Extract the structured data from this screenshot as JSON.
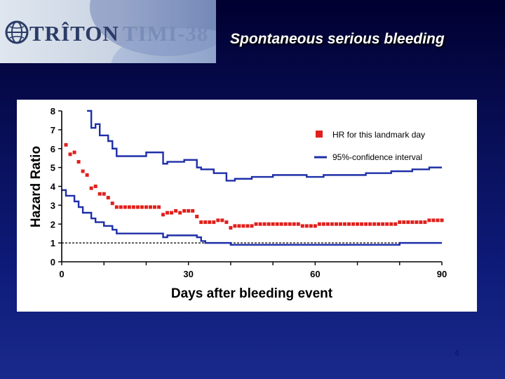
{
  "header": {
    "logo_text_triton": "TRÎTON",
    "logo_text_timi": "TIMI-38",
    "title": "Spontaneous serious bleeding"
  },
  "page_number": "4",
  "chart_data": {
    "type": "line",
    "xlabel": "Days after bleeding event",
    "ylabel": "Hazard Ratio",
    "xlim": [
      0,
      90
    ],
    "ylim": [
      0,
      8
    ],
    "x_ticks": [
      0,
      30,
      60,
      90
    ],
    "y_ticks": [
      0,
      1,
      2,
      3,
      4,
      5,
      6,
      7,
      8
    ],
    "reference_line": 1,
    "legend_position": "top-right",
    "colors": {
      "hr": "#e0201c",
      "ci": "#1e2fa8",
      "axis": "#000000"
    },
    "series": [
      {
        "name": "HR for this landmark day",
        "style": "markers",
        "x": [
          1,
          2,
          3,
          4,
          5,
          6,
          7,
          8,
          9,
          10,
          11,
          12,
          13,
          14,
          15,
          16,
          17,
          18,
          19,
          20,
          21,
          22,
          23,
          24,
          25,
          26,
          27,
          28,
          29,
          30,
          31,
          32,
          33,
          34,
          35,
          36,
          37,
          38,
          39,
          40,
          41,
          42,
          43,
          44,
          45,
          46,
          47,
          48,
          49,
          50,
          51,
          52,
          53,
          54,
          55,
          56,
          57,
          58,
          59,
          60,
          61,
          62,
          63,
          64,
          65,
          66,
          67,
          68,
          69,
          70,
          71,
          72,
          73,
          74,
          75,
          76,
          77,
          78,
          79,
          80,
          81,
          82,
          83,
          84,
          85,
          86,
          87,
          88,
          89,
          90
        ],
        "values": [
          6.2,
          5.7,
          5.8,
          5.3,
          4.8,
          4.6,
          3.9,
          4.0,
          3.6,
          3.6,
          3.4,
          3.1,
          2.9,
          2.9,
          2.9,
          2.9,
          2.9,
          2.9,
          2.9,
          2.9,
          2.9,
          2.9,
          2.9,
          2.5,
          2.6,
          2.6,
          2.7,
          2.6,
          2.7,
          2.7,
          2.7,
          2.4,
          2.1,
          2.1,
          2.1,
          2.1,
          2.2,
          2.2,
          2.1,
          1.8,
          1.9,
          1.9,
          1.9,
          1.9,
          1.9,
          2.0,
          2.0,
          2.0,
          2.0,
          2.0,
          2.0,
          2.0,
          2.0,
          2.0,
          2.0,
          2.0,
          1.9,
          1.9,
          1.9,
          1.9,
          2.0,
          2.0,
          2.0,
          2.0,
          2.0,
          2.0,
          2.0,
          2.0,
          2.0,
          2.0,
          2.0,
          2.0,
          2.0,
          2.0,
          2.0,
          2.0,
          2.0,
          2.0,
          2.0,
          2.1,
          2.1,
          2.1,
          2.1,
          2.1,
          2.1,
          2.1,
          2.2,
          2.2,
          2.2,
          2.2
        ]
      },
      {
        "name": "95%-confidence interval",
        "style": "step-line",
        "x": [
          6,
          7,
          8,
          9,
          10,
          11,
          12,
          13,
          14,
          15,
          16,
          17,
          18,
          19,
          20,
          21,
          22,
          23,
          24,
          25,
          26,
          27,
          28,
          29,
          30,
          31,
          32,
          33,
          34,
          35,
          36,
          37,
          38,
          39,
          40,
          41,
          42,
          43,
          44,
          45,
          46,
          47,
          48,
          49,
          50,
          51,
          52,
          53,
          54,
          55,
          56,
          57,
          58,
          59,
          60,
          61,
          62,
          63,
          64,
          65,
          66,
          67,
          68,
          69,
          70,
          71,
          72,
          73,
          74,
          75,
          76,
          77,
          78,
          79,
          80,
          81,
          82,
          83,
          84,
          85,
          86,
          87,
          88,
          89,
          90
        ],
        "values": [
          8.0,
          7.1,
          7.3,
          6.7,
          6.7,
          6.4,
          6.0,
          5.6,
          5.6,
          5.6,
          5.6,
          5.6,
          5.6,
          5.6,
          5.8,
          5.8,
          5.8,
          5.8,
          5.2,
          5.3,
          5.3,
          5.3,
          5.3,
          5.4,
          5.4,
          5.4,
          5.0,
          4.9,
          4.9,
          4.9,
          4.7,
          4.7,
          4.7,
          4.3,
          4.3,
          4.4,
          4.4,
          4.4,
          4.4,
          4.5,
          4.5,
          4.5,
          4.5,
          4.5,
          4.6,
          4.6,
          4.6,
          4.6,
          4.6,
          4.6,
          4.6,
          4.6,
          4.5,
          4.5,
          4.5,
          4.5,
          4.6,
          4.6,
          4.6,
          4.6,
          4.6,
          4.6,
          4.6,
          4.6,
          4.6,
          4.6,
          4.7,
          4.7,
          4.7,
          4.7,
          4.7,
          4.7,
          4.8,
          4.8,
          4.8,
          4.8,
          4.8,
          4.9,
          4.9,
          4.9,
          4.9,
          5.0,
          5.0,
          5.0,
          5.0
        ]
      },
      {
        "name": "",
        "style": "step-line",
        "x": [
          0,
          1,
          2,
          3,
          4,
          5,
          6,
          7,
          8,
          9,
          10,
          11,
          12,
          13,
          14,
          15,
          16,
          17,
          18,
          19,
          20,
          21,
          22,
          23,
          24,
          25,
          26,
          27,
          28,
          29,
          30,
          31,
          32,
          33,
          34,
          35,
          36,
          37,
          38,
          39,
          40,
          41,
          42,
          43,
          44,
          45,
          46,
          47,
          48,
          49,
          50,
          51,
          52,
          53,
          54,
          55,
          56,
          57,
          58,
          59,
          60,
          61,
          62,
          63,
          64,
          65,
          66,
          67,
          68,
          69,
          70,
          71,
          72,
          73,
          74,
          75,
          76,
          77,
          78,
          79,
          80,
          81,
          82,
          83,
          84,
          85,
          86,
          87,
          88,
          89,
          90
        ],
        "values": [
          3.8,
          3.5,
          3.5,
          3.2,
          2.9,
          2.6,
          2.6,
          2.3,
          2.1,
          2.1,
          1.9,
          1.9,
          1.7,
          1.5,
          1.5,
          1.5,
          1.5,
          1.5,
          1.5,
          1.5,
          1.5,
          1.5,
          1.5,
          1.5,
          1.3,
          1.4,
          1.4,
          1.4,
          1.4,
          1.4,
          1.4,
          1.4,
          1.3,
          1.1,
          1.0,
          1.0,
          1.0,
          1.0,
          1.0,
          1.0,
          0.9,
          0.9,
          0.9,
          0.9,
          0.9,
          0.9,
          0.9,
          0.9,
          0.9,
          0.9,
          0.9,
          0.9,
          0.9,
          0.9,
          0.9,
          0.9,
          0.9,
          0.9,
          0.9,
          0.9,
          0.9,
          0.9,
          0.9,
          0.9,
          0.9,
          0.9,
          0.9,
          0.9,
          0.9,
          0.9,
          0.9,
          0.9,
          0.9,
          0.9,
          0.9,
          0.9,
          0.9,
          0.9,
          0.9,
          0.9,
          1.0,
          1.0,
          1.0,
          1.0,
          1.0,
          1.0,
          1.0,
          1.0,
          1.0,
          1.0,
          1.0
        ]
      }
    ]
  }
}
